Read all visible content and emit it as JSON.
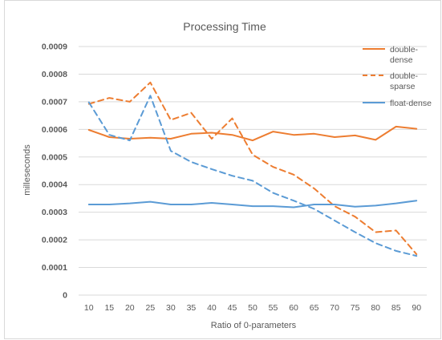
{
  "chart_data": {
    "type": "line",
    "title": "Processing Time",
    "xlabel": "Ratio of 0-parameters",
    "ylabel": "milleseconds",
    "categories": [
      "10",
      "15",
      "20",
      "25",
      "30",
      "35",
      "40",
      "45",
      "50",
      "55",
      "60",
      "65",
      "70",
      "75",
      "80",
      "85",
      "90"
    ],
    "ylim": [
      0,
      0.0009
    ],
    "yticks": [
      "0",
      "0.0001",
      "0.0002",
      "0.0003",
      "0.0004",
      "0.0005",
      "0.0006",
      "0.0007",
      "0.0008",
      "0.0009"
    ],
    "grid": true,
    "legend": "right",
    "series": [
      {
        "name_lines": [
          "double-",
          "dense"
        ],
        "color": "#ED7D31",
        "dash": "solid",
        "values": [
          0.000598,
          0.000572,
          0.000566,
          0.00057,
          0.000566,
          0.000584,
          0.000588,
          0.00058,
          0.00056,
          0.000592,
          0.00058,
          0.000584,
          0.000572,
          0.000578,
          0.000562,
          0.00061,
          0.000602
        ]
      },
      {
        "name_lines": [
          "double-",
          "sparse"
        ],
        "color": "#ED7D31",
        "dash": "dashed",
        "values": [
          0.000692,
          0.000714,
          0.0007,
          0.00077,
          0.000634,
          0.00066,
          0.000566,
          0.00064,
          0.000508,
          0.000464,
          0.000436,
          0.000386,
          0.000322,
          0.000284,
          0.000228,
          0.000234,
          0.000148
        ]
      },
      {
        "name_lines": [
          "float-dense"
        ],
        "color": "#5B9BD5",
        "dash": "solid",
        "values": [
          0.000328,
          0.000328,
          0.000332,
          0.000338,
          0.000328,
          0.000328,
          0.000334,
          0.000328,
          0.000322,
          0.000322,
          0.000318,
          0.000328,
          0.000328,
          0.00032,
          0.000324,
          0.000332,
          0.000342
        ]
      },
      {
        "name_lines": [],
        "color": "#5B9BD5",
        "dash": "dashed",
        "values": [
          0.000698,
          0.00058,
          0.00056,
          0.000722,
          0.000522,
          0.000482,
          0.000456,
          0.000432,
          0.000414,
          0.00037,
          0.000342,
          0.000312,
          0.00027,
          0.000228,
          0.000188,
          0.00016,
          0.000142
        ]
      }
    ]
  }
}
